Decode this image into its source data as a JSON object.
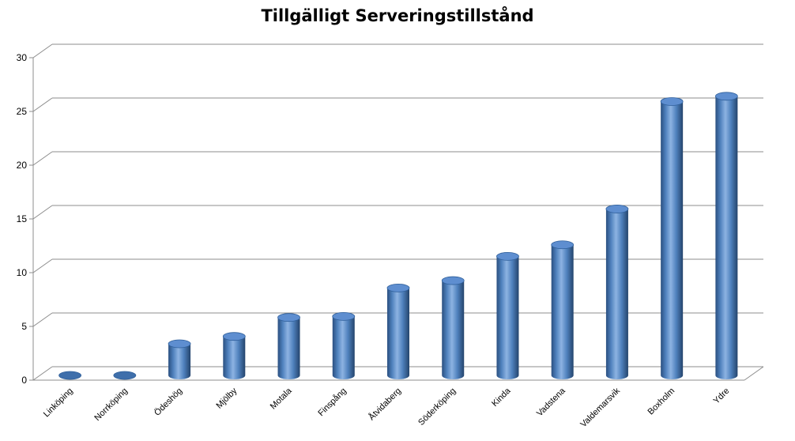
{
  "chart_data": {
    "type": "bar",
    "style": "3d-cylinder",
    "title": "Tillgälligt Serveringstillstånd",
    "xlabel": "",
    "ylabel": "",
    "categories": [
      "Linköping",
      "Norrköping",
      "Ödeshög",
      "Mjölby",
      "Motala",
      "Finspång",
      "Åtvidaberg",
      "Söderköping",
      "Kinda",
      "Vadstena",
      "Valdemarsvik",
      "Boxholm",
      "Ydre"
    ],
    "values": [
      0,
      0,
      3,
      3.7,
      5.5,
      5.6,
      8.3,
      9,
      11.3,
      12.4,
      15.8,
      26,
      26.5
    ],
    "ylim": [
      0,
      30
    ],
    "yticks": [
      "0",
      "5",
      "10",
      "15",
      "20",
      "25",
      "30"
    ],
    "grid": true,
    "legend": "none",
    "colors": {
      "bar_main": "#4f81bd",
      "bar_light": "#8db3e2",
      "bar_dark": "#24446c",
      "top": "#5e8ed0",
      "grid": "#8c8c8c"
    }
  }
}
